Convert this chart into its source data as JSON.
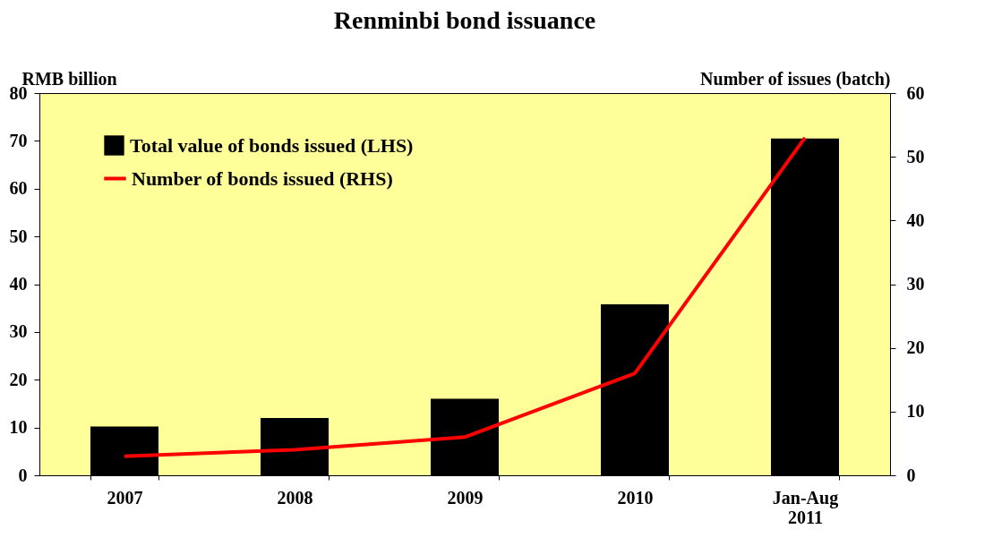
{
  "chart_data": {
    "type": "bar",
    "title": "Renminbi bond issuance",
    "ylabel": "RMB billion",
    "y2label": "Number of issues (batch)",
    "categories": [
      "2007",
      "2008",
      "2009",
      "2010",
      "Jan-Aug 2011"
    ],
    "series": [
      {
        "name": "Total value of bonds issued (LHS)",
        "color": "#000000",
        "values": [
          10.2,
          12,
          16,
          35.8,
          70.5
        ]
      },
      {
        "name": "Number of bonds issued (RHS)",
        "type": "line",
        "axis": "y2",
        "color": "#ff0000",
        "values": [
          3,
          4,
          6,
          16,
          53
        ]
      }
    ],
    "ylim": [
      0,
      80
    ],
    "yticks": [
      0,
      10,
      20,
      30,
      40,
      50,
      60,
      70,
      80
    ],
    "y2lim": [
      0,
      60
    ],
    "y2ticks": [
      0,
      10,
      20,
      30,
      40,
      50,
      60
    ],
    "legend": "top left",
    "grid": false
  }
}
